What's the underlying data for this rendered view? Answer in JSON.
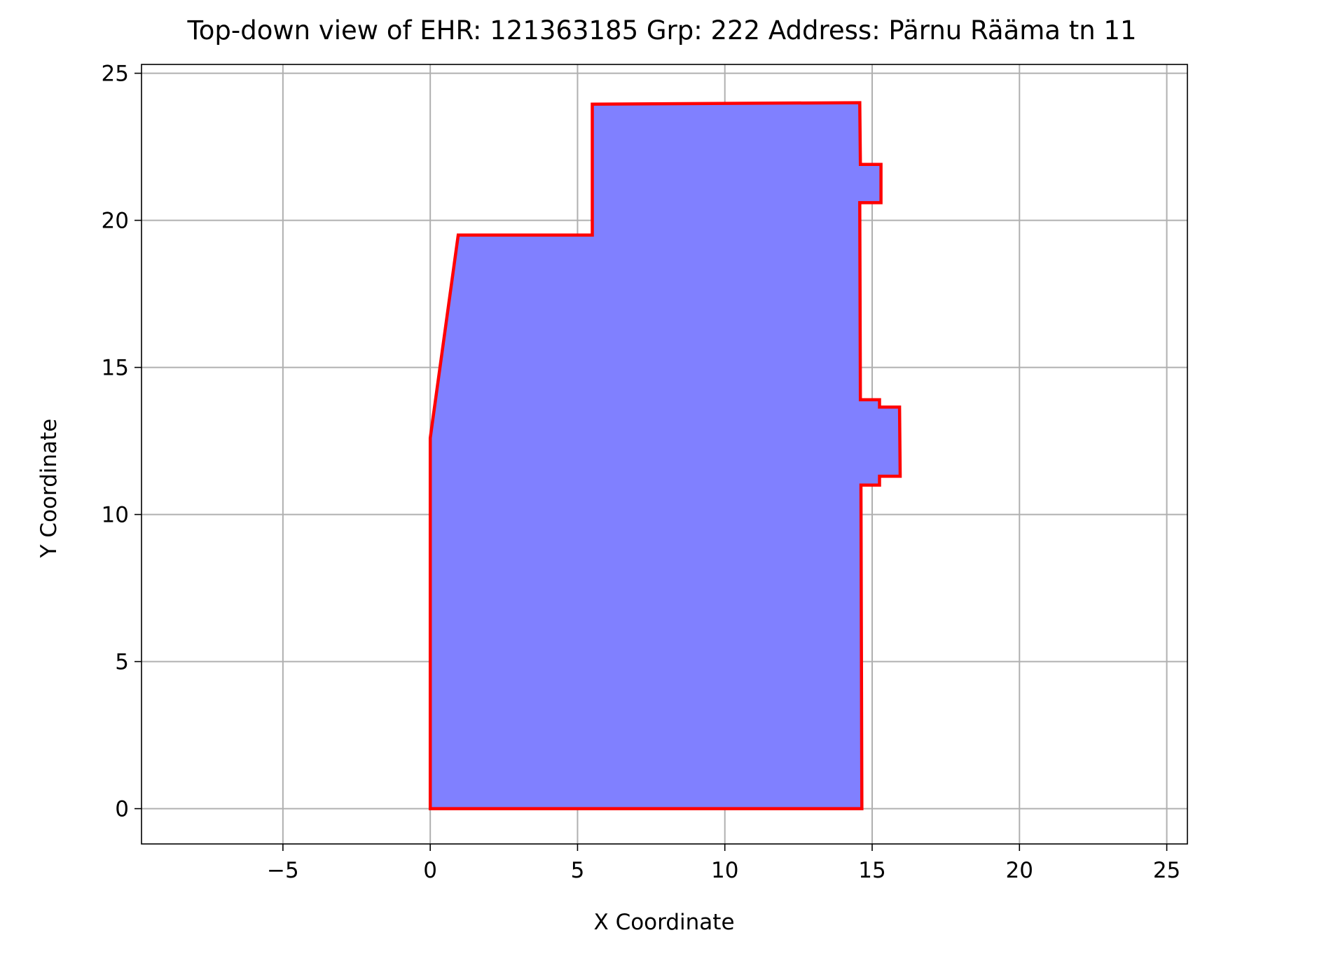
{
  "chart_data": {
    "type": "polygon",
    "title": "Top-down view of EHR: 121363185 Grp: 222 Address: Pärnu Rääma tn 11",
    "xlabel": "X Coordinate",
    "ylabel": "Y Coordinate",
    "xlim": [
      -9.8,
      25.7
    ],
    "ylim": [
      -1.2,
      25.3
    ],
    "xticks": [
      -5,
      0,
      5,
      10,
      15,
      20,
      25
    ],
    "yticks": [
      0,
      5,
      10,
      15,
      20,
      25
    ],
    "xtick_labels": [
      "−5",
      "0",
      "5",
      "10",
      "15",
      "20",
      "25"
    ],
    "ytick_labels": [
      "0",
      "5",
      "10",
      "15",
      "20",
      "25"
    ],
    "grid": true,
    "fill_color": "#8080ff",
    "edge_color": "#ff0000",
    "vertices": [
      [
        0.0,
        0.0
      ],
      [
        14.65,
        0.0
      ],
      [
        14.62,
        11.0
      ],
      [
        15.25,
        11.0
      ],
      [
        15.25,
        11.3
      ],
      [
        15.95,
        11.3
      ],
      [
        15.93,
        13.65
      ],
      [
        15.25,
        13.65
      ],
      [
        15.25,
        13.9
      ],
      [
        14.6,
        13.9
      ],
      [
        14.58,
        20.6
      ],
      [
        15.3,
        20.6
      ],
      [
        15.3,
        21.9
      ],
      [
        14.6,
        21.9
      ],
      [
        14.58,
        24.0
      ],
      [
        5.5,
        23.95
      ],
      [
        5.5,
        19.5
      ],
      [
        0.95,
        19.5
      ],
      [
        0.0,
        12.6
      ]
    ]
  }
}
